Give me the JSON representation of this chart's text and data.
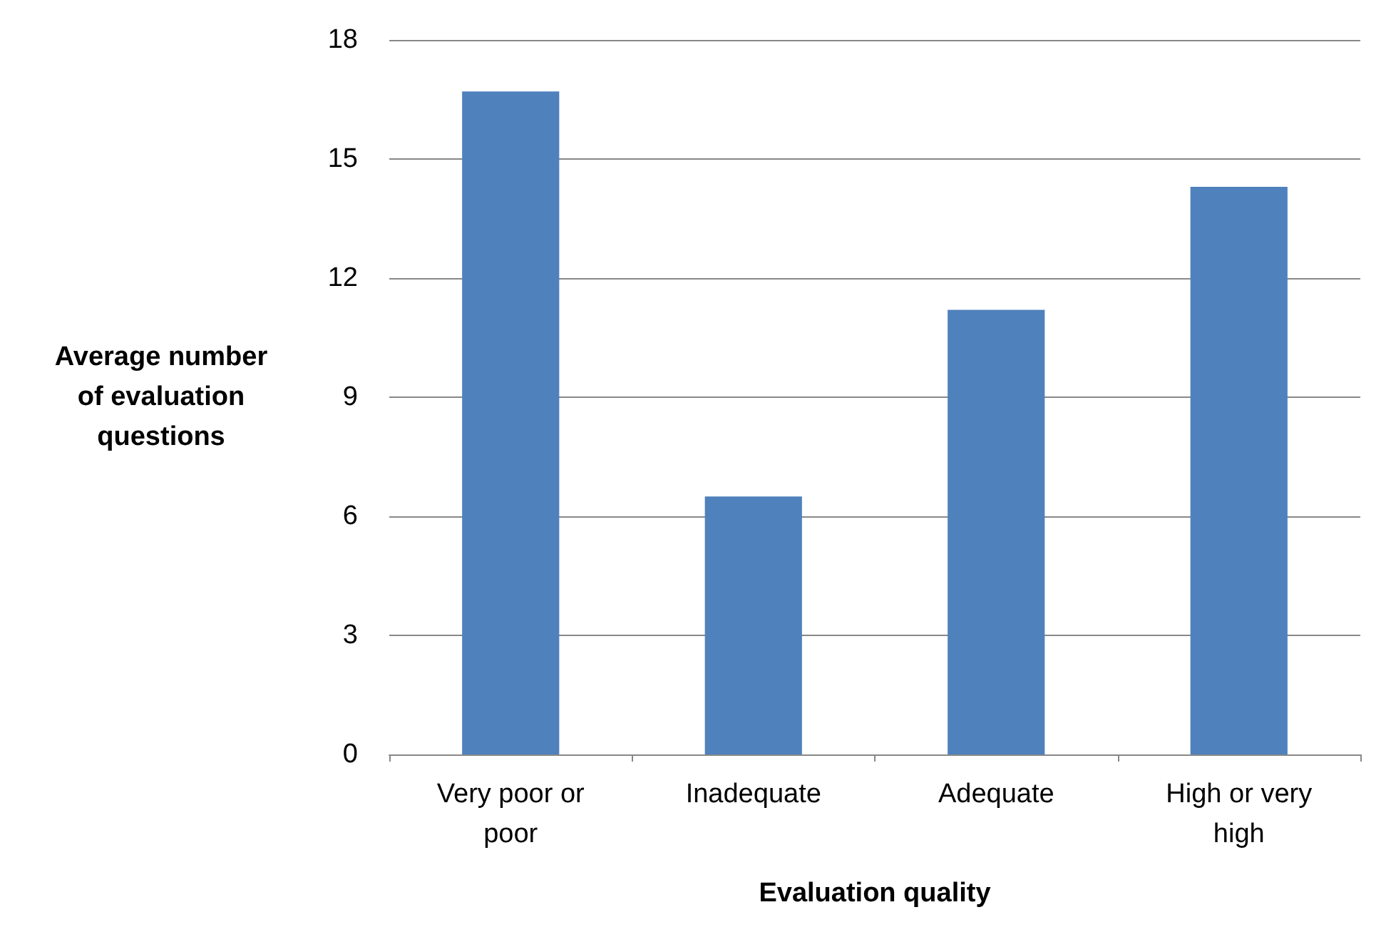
{
  "chart_data": {
    "type": "bar",
    "xlabel": "Evaluation quality",
    "ylabel": "Average number of evaluation questions",
    "categories": [
      "Very poor or poor",
      "Inadequate",
      "Adequate",
      "High or very high"
    ],
    "values": [
      16.7,
      6.5,
      11.2,
      14.3
    ],
    "color": "#4f81bd",
    "ylim": [
      0,
      18
    ],
    "yticks": [
      0,
      3,
      6,
      9,
      12,
      15,
      18
    ],
    "grid": "y"
  }
}
